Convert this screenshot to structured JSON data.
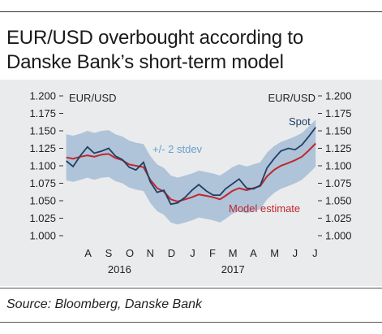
{
  "title_lines": [
    "EUR/USD overbought according to",
    "Danske Bank’s short-term model"
  ],
  "source": "Source: Bloomberg, Danske Bank",
  "colors": {
    "spot": "#1f3f63",
    "model": "#c1272d",
    "band": "#a9bfd6",
    "band_label": "#6a9ccd",
    "panel": "#e9ebed",
    "text": "#222222"
  },
  "chart_data": {
    "type": "line",
    "left_axis_label": "EUR/USD",
    "right_axis_label": "EUR/USD",
    "ylim": [
      1.0,
      1.2
    ],
    "yticks": [
      "1.000",
      "1.025",
      "1.050",
      "1.075",
      "1.100",
      "1.125",
      "1.150",
      "1.175",
      "1.200"
    ],
    "month_labels": [
      "A",
      "S",
      "O",
      "N",
      "D",
      "J",
      "F",
      "M",
      "A",
      "M",
      "J",
      "J"
    ],
    "year_labels": [
      "2016",
      "2017"
    ],
    "grid": false,
    "annotations": {
      "band": "+/- 2 stdev",
      "spot": "Spot",
      "model": "Model estimate"
    },
    "x": [
      "2016-07-15",
      "2016-07-25",
      "2016-08-05",
      "2016-08-15",
      "2016-08-25",
      "2016-09-05",
      "2016-09-15",
      "2016-09-25",
      "2016-10-05",
      "2016-10-15",
      "2016-10-25",
      "2016-11-05",
      "2016-11-15",
      "2016-11-25",
      "2016-12-05",
      "2016-12-15",
      "2016-12-25",
      "2017-01-05",
      "2017-01-15",
      "2017-01-25",
      "2017-02-05",
      "2017-02-15",
      "2017-02-25",
      "2017-03-05",
      "2017-03-15",
      "2017-03-25",
      "2017-04-05",
      "2017-04-15",
      "2017-04-25",
      "2017-05-05",
      "2017-05-15",
      "2017-05-25",
      "2017-06-05",
      "2017-06-15",
      "2017-06-25",
      "2017-07-05",
      "2017-07-15"
    ],
    "series": [
      {
        "name": "Spot",
        "values": [
          1.107,
          1.099,
          1.115,
          1.127,
          1.118,
          1.121,
          1.125,
          1.114,
          1.109,
          1.098,
          1.094,
          1.105,
          1.077,
          1.062,
          1.065,
          1.045,
          1.047,
          1.055,
          1.065,
          1.073,
          1.064,
          1.058,
          1.058,
          1.067,
          1.074,
          1.081,
          1.068,
          1.067,
          1.072,
          1.097,
          1.11,
          1.121,
          1.125,
          1.123,
          1.13,
          1.142,
          1.155
        ]
      },
      {
        "name": "Model estimate",
        "values": [
          1.112,
          1.11,
          1.113,
          1.115,
          1.113,
          1.116,
          1.117,
          1.111,
          1.108,
          1.102,
          1.1,
          1.098,
          1.08,
          1.068,
          1.063,
          1.052,
          1.049,
          1.052,
          1.055,
          1.059,
          1.057,
          1.055,
          1.052,
          1.057,
          1.064,
          1.068,
          1.065,
          1.068,
          1.071,
          1.085,
          1.094,
          1.1,
          1.104,
          1.108,
          1.113,
          1.122,
          1.132
        ]
      },
      {
        "name": "upper",
        "values": [
          1.145,
          1.143,
          1.146,
          1.15,
          1.147,
          1.15,
          1.151,
          1.145,
          1.142,
          1.136,
          1.133,
          1.131,
          1.114,
          1.102,
          1.097,
          1.086,
          1.083,
          1.086,
          1.089,
          1.093,
          1.091,
          1.089,
          1.086,
          1.091,
          1.098,
          1.102,
          1.099,
          1.102,
          1.105,
          1.119,
          1.128,
          1.134,
          1.138,
          1.142,
          1.147,
          1.156,
          1.166
        ]
      },
      {
        "name": "lower",
        "values": [
          1.079,
          1.077,
          1.08,
          1.083,
          1.08,
          1.083,
          1.084,
          1.078,
          1.075,
          1.069,
          1.066,
          1.064,
          1.047,
          1.035,
          1.03,
          1.019,
          1.016,
          1.019,
          1.022,
          1.026,
          1.024,
          1.022,
          1.019,
          1.024,
          1.031,
          1.035,
          1.032,
          1.035,
          1.038,
          1.052,
          1.061,
          1.067,
          1.071,
          1.075,
          1.08,
          1.089,
          1.099
        ]
      }
    ]
  }
}
